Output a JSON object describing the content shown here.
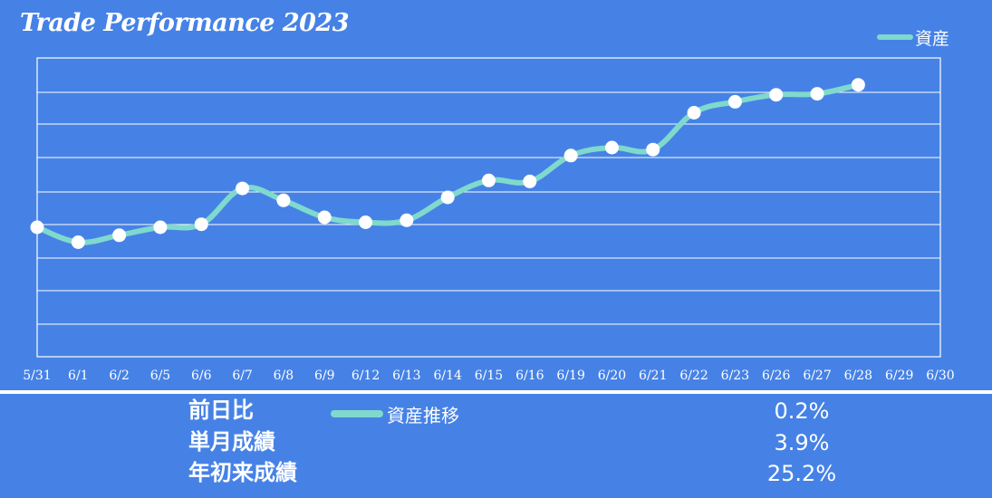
{
  "chart_data": {
    "type": "line",
    "title": "Trade Performance 2023",
    "categories": [
      "5/31",
      "6/1",
      "6/2",
      "6/5",
      "6/6",
      "6/7",
      "6/8",
      "6/9",
      "6/12",
      "6/13",
      "6/14",
      "6/15",
      "6/16",
      "6/19",
      "6/20",
      "6/21",
      "6/22",
      "6/23",
      "6/26",
      "6/27",
      "6/28",
      "6/29",
      "6/30"
    ],
    "series": [
      {
        "name": "資産",
        "values": [
          100.0,
          98.5,
          99.2,
          100.0,
          100.3,
          103.9,
          102.7,
          101.0,
          100.5,
          100.7,
          103.0,
          104.7,
          104.6,
          107.2,
          108.0,
          107.8,
          111.5,
          112.6,
          113.3,
          113.4,
          114.3,
          null,
          null
        ]
      }
    ],
    "ylim": [
      87,
      117
    ],
    "grid": true,
    "legend_position": "top-right"
  },
  "colors": {
    "background": "#4682E6",
    "line": "#7FD9CC",
    "marker": "#FFFFFF",
    "grid": "#FFFFFF"
  },
  "summary": {
    "legend_label": "資産推移",
    "rows": [
      {
        "label": "前日比",
        "value": "0.2%"
      },
      {
        "label": "単月成績",
        "value": "3.9%"
      },
      {
        "label": "年初来成績",
        "value": "25.2%"
      }
    ]
  }
}
